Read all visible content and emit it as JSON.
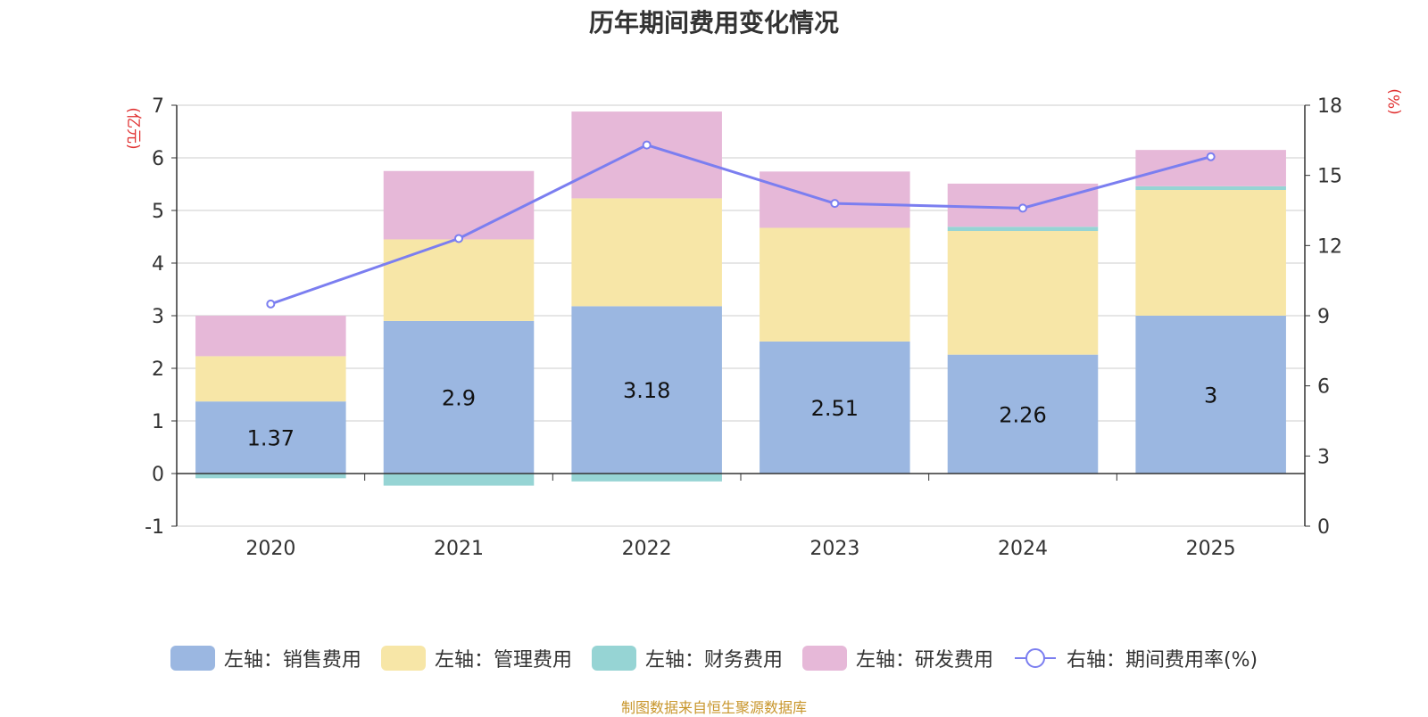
{
  "chart_data": {
    "type": "bar",
    "title": "历年期间费用变化情况",
    "categories": [
      "2020",
      "2021",
      "2022",
      "2023",
      "2024",
      "2025"
    ],
    "series": [
      {
        "name": "左轴：销售费用",
        "axis": "left",
        "color": "#9bb7e1",
        "values": [
          1.37,
          2.9,
          3.18,
          2.51,
          2.26,
          3.0
        ],
        "labels": [
          "1.37",
          "2.9",
          "3.18",
          "2.51",
          "2.26",
          "3"
        ]
      },
      {
        "name": "左轴：管理费用",
        "axis": "left",
        "color": "#f7e6a7",
        "values": [
          0.86,
          1.55,
          2.05,
          2.16,
          2.35,
          2.39
        ]
      },
      {
        "name": "左轴：财务费用",
        "axis": "left",
        "color": "#96d4d4",
        "values": [
          -0.09,
          -0.23,
          -0.15,
          0.0,
          0.08,
          0.07
        ]
      },
      {
        "name": "左轴：研发费用",
        "axis": "left",
        "color": "#e6b8d8",
        "values": [
          0.77,
          1.3,
          1.65,
          1.07,
          0.82,
          0.69
        ]
      },
      {
        "name": "右轴：期间费用率(%)",
        "axis": "right",
        "type": "line",
        "color": "#7b7ef0",
        "values": [
          9.5,
          12.3,
          16.3,
          13.8,
          13.6,
          15.8
        ]
      }
    ],
    "left_axis": {
      "label": "(亿元)",
      "min": -1,
      "max": 7,
      "ticks": [
        "-1",
        "0",
        "1",
        "2",
        "3",
        "4",
        "5",
        "6",
        "7"
      ]
    },
    "right_axis": {
      "label": "(%)",
      "min": 0,
      "max": 18,
      "ticks": [
        "0",
        "3",
        "6",
        "9",
        "12",
        "15",
        "18"
      ]
    },
    "legend_position": "bottom",
    "grid": true
  },
  "footer": "制图数据来自恒生聚源数据库"
}
